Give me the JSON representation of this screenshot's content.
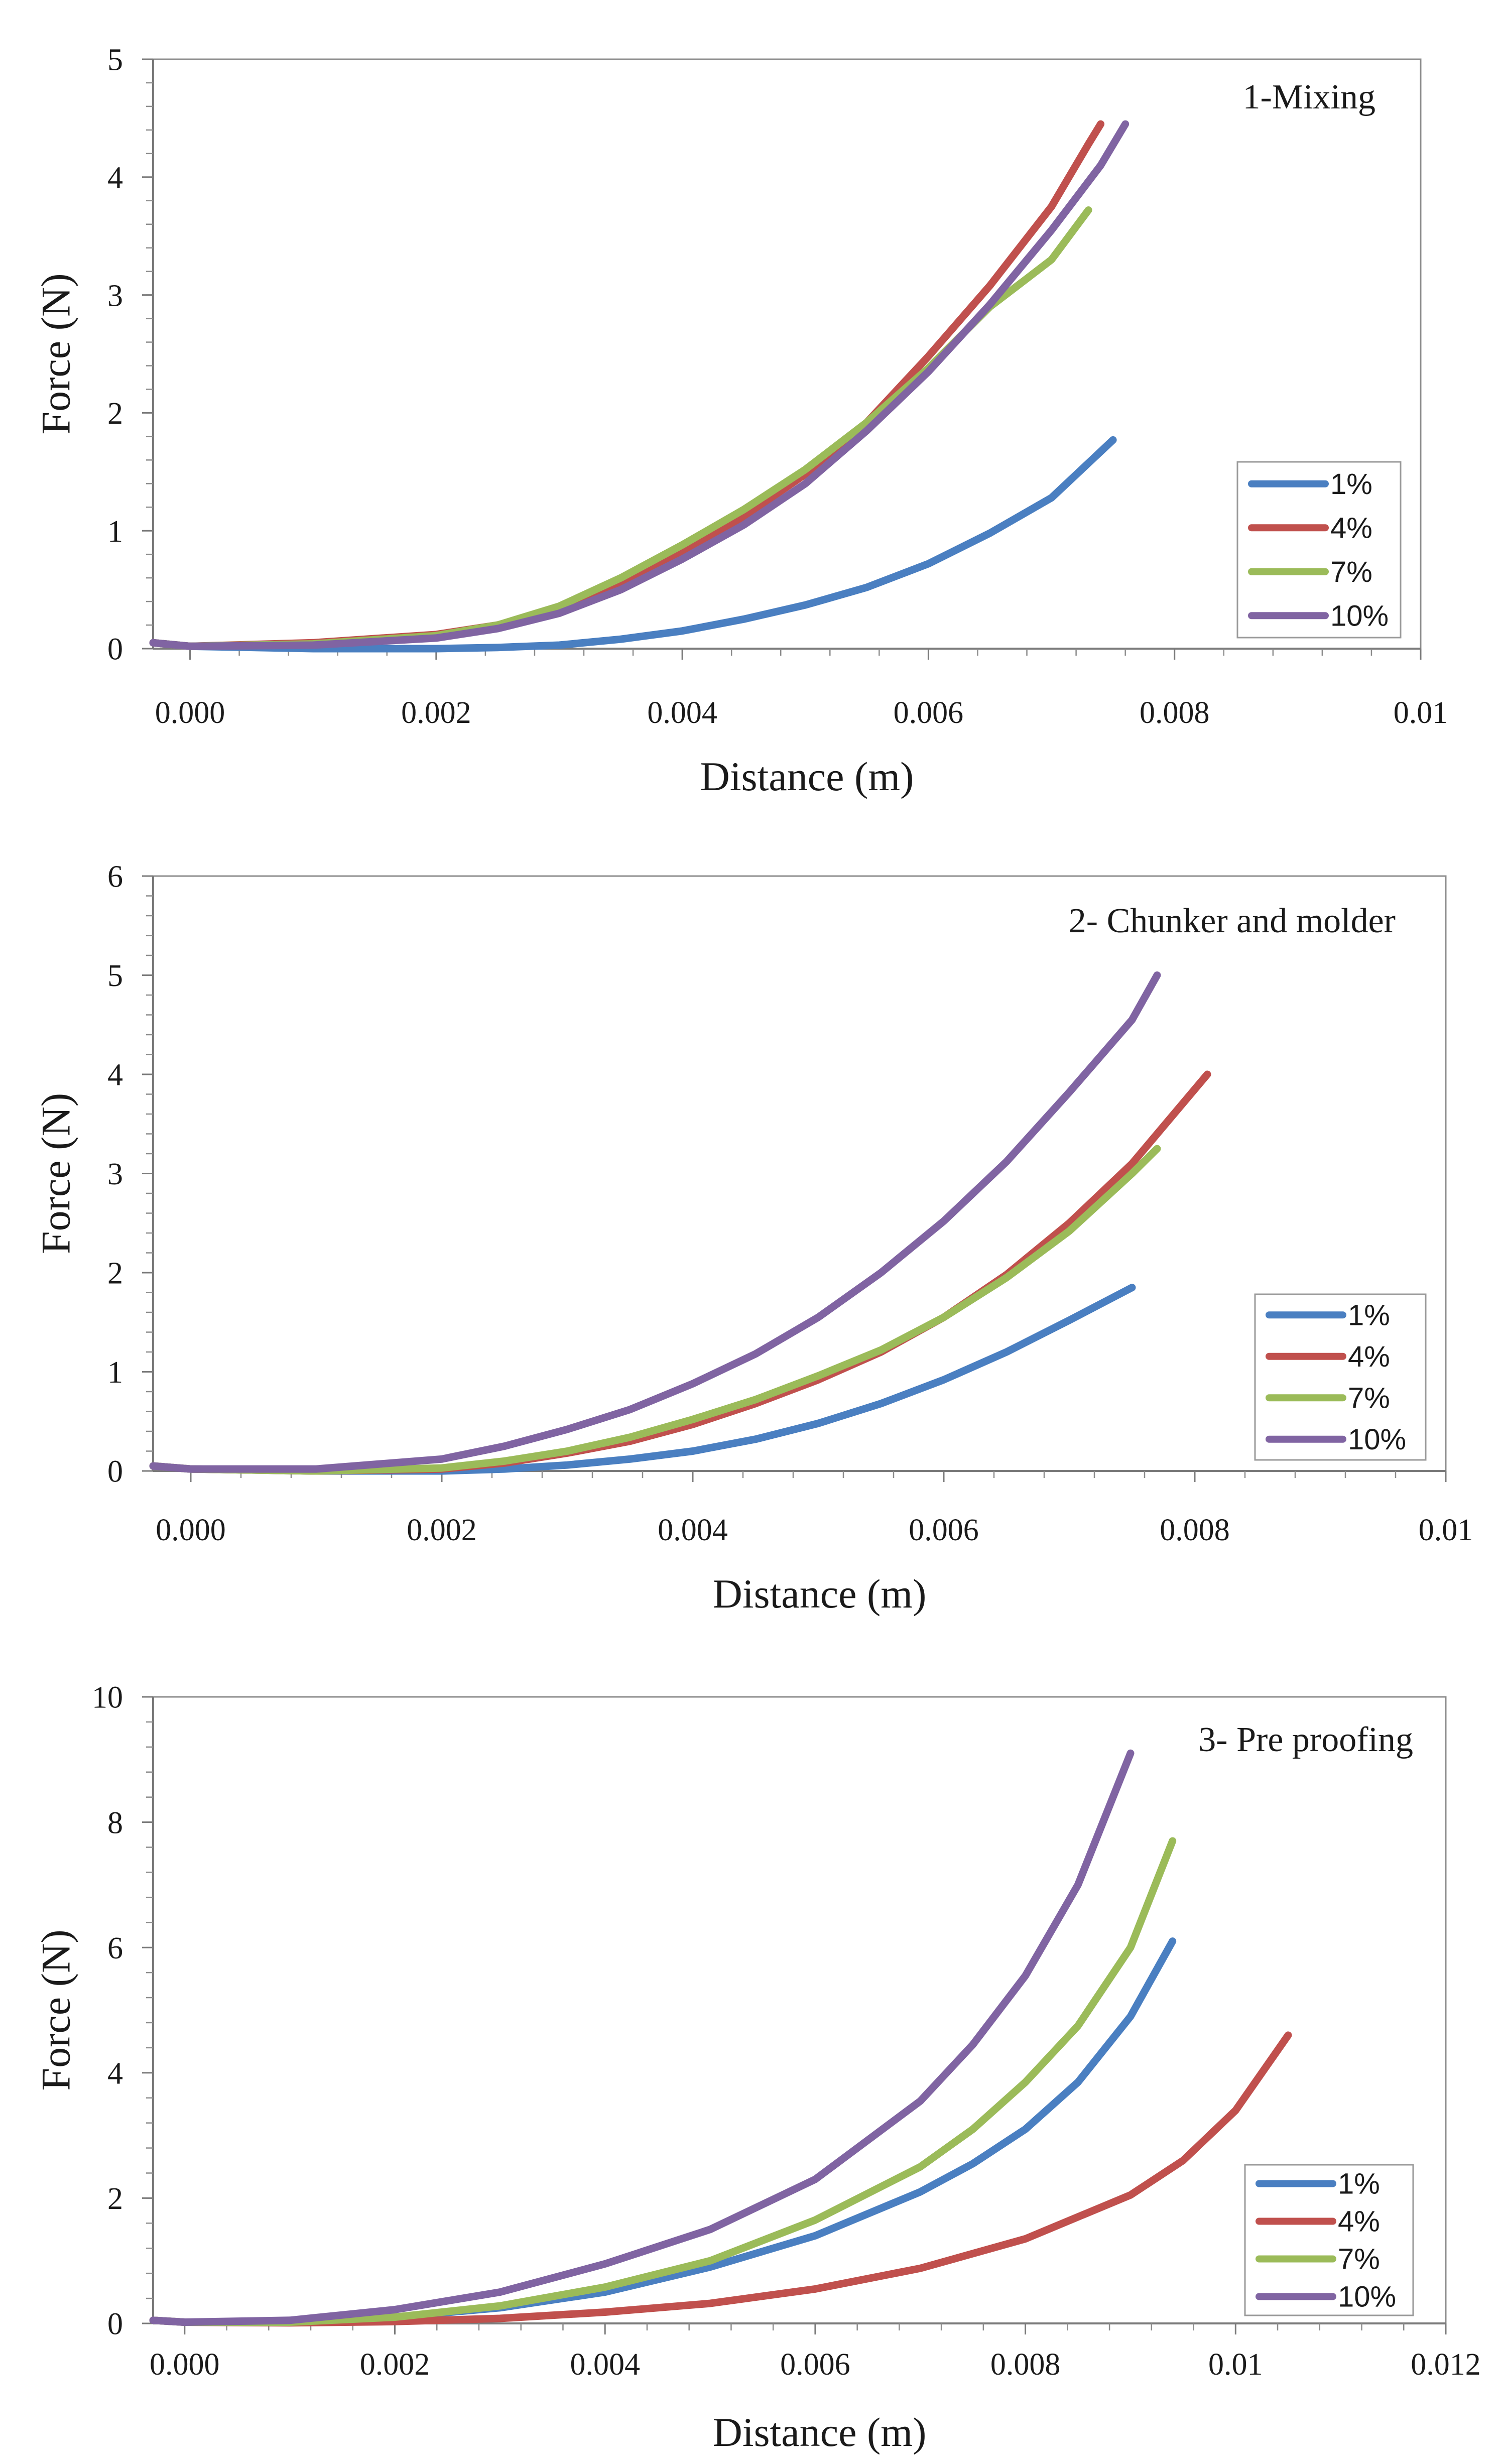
{
  "chart_data": [
    {
      "type": "line",
      "title": "1-Mixing",
      "xlabel": "Distance (m)",
      "ylabel": "Force (N)",
      "xlim": [
        -0.0003,
        0.01
      ],
      "ylim": [
        0,
        5
      ],
      "x_ticks": [
        0.0,
        0.002,
        0.004,
        0.006,
        0.008,
        0.01
      ],
      "x_tick_labels": [
        "0.000",
        "0.002",
        "0.004",
        "0.006",
        "0.008",
        "0.01"
      ],
      "y_ticks": [
        0,
        1,
        2,
        3,
        4,
        5
      ],
      "y_tick_labels": [
        "0",
        "1",
        "2",
        "3",
        "4",
        "5"
      ],
      "legend_position": "right",
      "series": [
        {
          "name": "1%",
          "color": "#4a7fc1",
          "x": [
            -0.0003,
            0.0,
            0.001,
            0.002,
            0.0025,
            0.003,
            0.0035,
            0.004,
            0.0045,
            0.005,
            0.0055,
            0.006,
            0.0065,
            0.007,
            0.0075
          ],
          "y": [
            0.05,
            0.02,
            0.0,
            0.0,
            0.01,
            0.03,
            0.08,
            0.15,
            0.25,
            0.37,
            0.52,
            0.72,
            0.98,
            1.28,
            1.77
          ]
        },
        {
          "name": "4%",
          "color": "#c0504d",
          "x": [
            -0.0003,
            0.0,
            0.001,
            0.002,
            0.0025,
            0.003,
            0.0035,
            0.004,
            0.0045,
            0.005,
            0.0055,
            0.006,
            0.0065,
            0.007,
            0.0073,
            0.0074
          ],
          "y": [
            0.05,
            0.02,
            0.05,
            0.12,
            0.2,
            0.33,
            0.55,
            0.82,
            1.12,
            1.48,
            1.92,
            2.48,
            3.08,
            3.75,
            4.28,
            4.45
          ]
        },
        {
          "name": "7%",
          "color": "#9bbb59",
          "x": [
            -0.0003,
            0.0,
            0.001,
            0.002,
            0.0025,
            0.003,
            0.0035,
            0.004,
            0.0045,
            0.005,
            0.0055,
            0.006,
            0.0065,
            0.007,
            0.0073
          ],
          "y": [
            0.05,
            0.02,
            0.04,
            0.11,
            0.2,
            0.36,
            0.6,
            0.88,
            1.18,
            1.52,
            1.92,
            2.38,
            2.9,
            3.3,
            3.72
          ]
        },
        {
          "name": "10%",
          "color": "#8064a2",
          "x": [
            -0.0003,
            0.0,
            0.001,
            0.002,
            0.0025,
            0.003,
            0.0035,
            0.004,
            0.0045,
            0.005,
            0.0055,
            0.006,
            0.0065,
            0.007,
            0.0074,
            0.0076
          ],
          "y": [
            0.05,
            0.02,
            0.03,
            0.09,
            0.17,
            0.3,
            0.5,
            0.76,
            1.05,
            1.4,
            1.85,
            2.35,
            2.92,
            3.55,
            4.1,
            4.45
          ]
        }
      ]
    },
    {
      "type": "line",
      "title": "2- Chunker and molder",
      "xlabel": "Distance (m)",
      "ylabel": "Force (N)",
      "xlim": [
        -0.0003,
        0.01
      ],
      "ylim": [
        0,
        6
      ],
      "x_ticks": [
        0.0,
        0.002,
        0.004,
        0.006,
        0.008,
        0.01
      ],
      "x_tick_labels": [
        "0.000",
        "0.002",
        "0.004",
        "0.006",
        "0.008",
        "0.01"
      ],
      "y_ticks": [
        0,
        1,
        2,
        3,
        4,
        5,
        6
      ],
      "y_tick_labels": [
        "0",
        "1",
        "2",
        "3",
        "4",
        "5",
        "6"
      ],
      "legend_position": "right",
      "series": [
        {
          "name": "1%",
          "color": "#4a7fc1",
          "x": [
            -0.0003,
            0.0,
            0.001,
            0.002,
            0.0025,
            0.003,
            0.0035,
            0.004,
            0.0045,
            0.005,
            0.0055,
            0.006,
            0.0065,
            0.007,
            0.0075
          ],
          "y": [
            0.05,
            0.02,
            0.0,
            0.0,
            0.02,
            0.06,
            0.12,
            0.2,
            0.32,
            0.48,
            0.68,
            0.92,
            1.2,
            1.52,
            1.85
          ]
        },
        {
          "name": "4%",
          "color": "#c0504d",
          "x": [
            -0.0003,
            0.0,
            0.001,
            0.002,
            0.0025,
            0.003,
            0.0035,
            0.004,
            0.0045,
            0.005,
            0.0055,
            0.006,
            0.0065,
            0.007,
            0.0075,
            0.0081
          ],
          "y": [
            0.05,
            0.02,
            0.0,
            0.02,
            0.08,
            0.18,
            0.3,
            0.47,
            0.68,
            0.92,
            1.2,
            1.55,
            1.98,
            2.5,
            3.1,
            4.0
          ]
        },
        {
          "name": "7%",
          "color": "#9bbb59",
          "x": [
            -0.0003,
            0.0,
            0.001,
            0.002,
            0.0025,
            0.003,
            0.0035,
            0.004,
            0.0045,
            0.005,
            0.0055,
            0.006,
            0.0065,
            0.007,
            0.0075,
            0.0077
          ],
          "y": [
            0.05,
            0.02,
            0.0,
            0.03,
            0.1,
            0.2,
            0.34,
            0.52,
            0.72,
            0.96,
            1.22,
            1.55,
            1.95,
            2.42,
            3.0,
            3.25
          ]
        },
        {
          "name": "10%",
          "color": "#8064a2",
          "x": [
            -0.0003,
            0.0,
            0.001,
            0.002,
            0.0025,
            0.003,
            0.0035,
            0.004,
            0.0045,
            0.005,
            0.0055,
            0.006,
            0.0065,
            0.007,
            0.0075,
            0.0077
          ],
          "y": [
            0.05,
            0.02,
            0.02,
            0.12,
            0.25,
            0.42,
            0.62,
            0.88,
            1.18,
            1.55,
            2.0,
            2.52,
            3.12,
            3.82,
            4.55,
            5.0
          ]
        }
      ]
    },
    {
      "type": "line",
      "title": "3- Pre proofing",
      "xlabel": "Distance (m)",
      "ylabel": "Force (N)",
      "xlim": [
        -0.0003,
        0.012
      ],
      "ylim": [
        0,
        10
      ],
      "x_ticks": [
        0.0,
        0.002,
        0.004,
        0.006,
        0.008,
        0.01,
        0.012
      ],
      "x_tick_labels": [
        "0.000",
        "0.002",
        "0.004",
        "0.006",
        "0.008",
        "0.01",
        "0.012"
      ],
      "y_ticks": [
        0,
        2,
        4,
        6,
        8,
        10
      ],
      "y_tick_labels": [
        "0",
        "2",
        "4",
        "6",
        "8",
        "10"
      ],
      "legend_position": "right",
      "series": [
        {
          "name": "1%",
          "color": "#4a7fc1",
          "x": [
            -0.0003,
            0.0,
            0.001,
            0.002,
            0.003,
            0.004,
            0.005,
            0.006,
            0.007,
            0.0075,
            0.008,
            0.0085,
            0.009,
            0.0094
          ],
          "y": [
            0.05,
            0.02,
            0.02,
            0.1,
            0.25,
            0.5,
            0.9,
            1.4,
            2.1,
            2.55,
            3.1,
            3.85,
            4.9,
            6.1
          ]
        },
        {
          "name": "4%",
          "color": "#c0504d",
          "x": [
            -0.0003,
            0.0,
            0.001,
            0.002,
            0.003,
            0.004,
            0.005,
            0.006,
            0.007,
            0.008,
            0.009,
            0.0095,
            0.01,
            0.0105
          ],
          "y": [
            0.05,
            0.02,
            0.01,
            0.03,
            0.08,
            0.18,
            0.32,
            0.55,
            0.88,
            1.35,
            2.05,
            2.6,
            3.4,
            4.6
          ]
        },
        {
          "name": "7%",
          "color": "#9bbb59",
          "x": [
            -0.0003,
            0.0,
            0.001,
            0.002,
            0.003,
            0.004,
            0.005,
            0.006,
            0.007,
            0.0075,
            0.008,
            0.0085,
            0.009,
            0.0094
          ],
          "y": [
            0.05,
            0.02,
            0.02,
            0.1,
            0.28,
            0.58,
            1.0,
            1.65,
            2.5,
            3.1,
            3.85,
            4.75,
            6.0,
            7.7
          ]
        },
        {
          "name": "10%",
          "color": "#8064a2",
          "x": [
            -0.0003,
            0.0,
            0.001,
            0.002,
            0.003,
            0.004,
            0.005,
            0.006,
            0.007,
            0.0075,
            0.008,
            0.0085,
            0.009
          ],
          "y": [
            0.05,
            0.02,
            0.05,
            0.22,
            0.5,
            0.95,
            1.5,
            2.3,
            3.55,
            4.45,
            5.55,
            7.0,
            9.1
          ]
        }
      ]
    }
  ]
}
